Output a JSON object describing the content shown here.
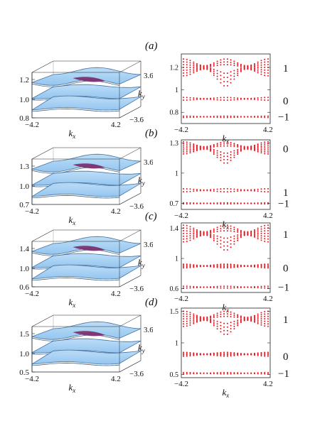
{
  "panels": [
    {
      "label": "(a)",
      "surface": {
        "z_ticks": [
          "1.2",
          "1.0",
          "0.8"
        ],
        "kx_ticks": [
          "−4.2",
          "4.2"
        ],
        "ky_ticks": [
          "3.6",
          "−3.6"
        ],
        "kx_label": "k",
        "kx_sub": "x",
        "ky_label": "k",
        "ky_sub": "y"
      },
      "spectrum": {
        "y_ticks": [
          "1.2",
          "1",
          "0.8"
        ],
        "x_ticks": [
          "−4.2",
          "4.2"
        ],
        "x_label": "k",
        "x_sub": "x",
        "chern": [
          "1",
          "0",
          "−1"
        ],
        "bands": [
          {
            "center": 1.2,
            "half_width": 0.075,
            "dip": 0.1
          },
          {
            "center": 0.92,
            "half_width": 0.012,
            "dip": 0.03
          },
          {
            "center": 0.76,
            "half_width": 0.006,
            "dip": 0.0
          }
        ],
        "ylim": [
          0.7,
          1.32
        ]
      }
    },
    {
      "label": "(b)",
      "surface": {
        "z_ticks": [
          "1.3",
          "1.0",
          "0.7"
        ],
        "kx_ticks": [
          "−4.2",
          "4.2"
        ],
        "ky_ticks": [
          "3.6",
          "−3.6"
        ],
        "kx_label": "k",
        "kx_sub": "x",
        "ky_label": "k",
        "ky_sub": "y"
      },
      "spectrum": {
        "y_ticks": [
          "1.3",
          "1",
          "0.7"
        ],
        "x_ticks": [
          "−4.2",
          "4.2"
        ],
        "x_label": "k",
        "x_sub": "x",
        "chern": [
          "0",
          "1",
          "−1"
        ],
        "bands": [
          {
            "center": 1.25,
            "half_width": 0.06,
            "dip": 0.1
          },
          {
            "center": 0.83,
            "half_width": 0.015,
            "dip": 0.0
          },
          {
            "center": 0.7,
            "half_width": 0.005,
            "dip": 0.0
          }
        ],
        "ylim": [
          0.64,
          1.33
        ]
      }
    },
    {
      "label": "(c)",
      "surface": {
        "z_ticks": [
          "1.4",
          "1.0",
          "0.6"
        ],
        "kx_ticks": [
          "−4.2",
          "4.2"
        ],
        "ky_ticks": [
          "3.6",
          "−3.6"
        ],
        "kx_label": "k",
        "kx_sub": "x",
        "ky_label": "k",
        "ky_sub": "y"
      },
      "spectrum": {
        "y_ticks": [
          "1.4",
          "1",
          "0.6"
        ],
        "x_ticks": [
          "−4.2",
          "4.2"
        ],
        "x_label": "k",
        "x_sub": "x",
        "chern": [
          "1",
          "0",
          "−1"
        ],
        "bands": [
          {
            "center": 1.33,
            "half_width": 0.11,
            "dip": 0.12
          },
          {
            "center": 0.9,
            "half_width": 0.025,
            "dip": 0.03
          },
          {
            "center": 0.62,
            "half_width": 0.012,
            "dip": 0.0
          }
        ],
        "ylim": [
          0.55,
          1.47
        ]
      }
    },
    {
      "label": "(d)",
      "surface": {
        "z_ticks": [
          "1.5",
          "1.0",
          "0.5"
        ],
        "kx_ticks": [
          "−4.2",
          "4.2"
        ],
        "ky_ticks": [
          "3.6",
          "−3.6"
        ],
        "kx_label": "k",
        "kx_sub": "x",
        "ky_label": "k",
        "ky_sub": "y"
      },
      "spectrum": {
        "y_ticks": [
          "1.5",
          "1",
          "0.5"
        ],
        "x_ticks": [
          "−4.2",
          "4.2"
        ],
        "x_label": "k",
        "x_sub": "x",
        "chern": [
          "1",
          "0",
          "−1"
        ],
        "bands": [
          {
            "center": 1.38,
            "half_width": 0.12,
            "dip": 0.14
          },
          {
            "center": 0.82,
            "half_width": 0.03,
            "dip": 0.04
          },
          {
            "center": 0.52,
            "half_width": 0.01,
            "dip": 0.0
          }
        ],
        "ylim": [
          0.45,
          1.55
        ]
      }
    }
  ],
  "colors": {
    "surface": "#8fc3f0",
    "surface_edge": "#3d6a98",
    "peak": "#7a2a6a",
    "points": "#e8141e",
    "frame": "#222222"
  }
}
